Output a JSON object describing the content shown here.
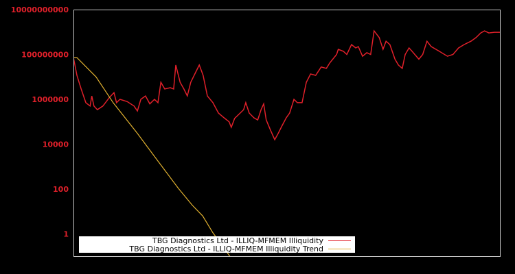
{
  "chart_data": {
    "type": "line",
    "title": "",
    "xlabel": "",
    "ylabel": "",
    "yscale": "log",
    "ylim": [
      0.1,
      10000000000
    ],
    "y_tick_labels": [
      "10000000000",
      "100000000",
      "1000000",
      "10000",
      "100",
      "1"
    ],
    "y_tick_values": [
      10000000000,
      100000000,
      1000000,
      10000,
      100,
      1
    ],
    "x_tick_labels": [],
    "grid": false,
    "legend_position": "bottom-left",
    "background": "#000000",
    "axis_color": "#cccccc",
    "tick_label_color": "#e0202a",
    "x_note": "x is relative position across the plot (0 = left edge, 1 = right edge); no x tick labels are shown",
    "series": [
      {
        "name": "TBG Diagnostics Ltd - ILLIQ-MFMEM Illiquidity",
        "color": "#e0202a",
        "points_x_rel_log10y": [
          [
            0.0,
            7.86
          ],
          [
            0.008,
            7.07
          ],
          [
            0.018,
            6.46
          ],
          [
            0.029,
            5.85
          ],
          [
            0.039,
            5.7
          ],
          [
            0.043,
            6.15
          ],
          [
            0.048,
            5.7
          ],
          [
            0.056,
            5.54
          ],
          [
            0.069,
            5.7
          ],
          [
            0.077,
            5.9
          ],
          [
            0.085,
            6.1
          ],
          [
            0.095,
            6.3
          ],
          [
            0.101,
            5.85
          ],
          [
            0.109,
            6.0
          ],
          [
            0.126,
            5.9
          ],
          [
            0.142,
            5.7
          ],
          [
            0.15,
            5.48
          ],
          [
            0.158,
            6.0
          ],
          [
            0.169,
            6.15
          ],
          [
            0.179,
            5.8
          ],
          [
            0.19,
            6.0
          ],
          [
            0.198,
            5.85
          ],
          [
            0.205,
            6.76
          ],
          [
            0.214,
            6.46
          ],
          [
            0.227,
            6.52
          ],
          [
            0.235,
            6.46
          ],
          [
            0.24,
            7.53
          ],
          [
            0.25,
            6.76
          ],
          [
            0.259,
            6.46
          ],
          [
            0.267,
            6.15
          ],
          [
            0.275,
            6.76
          ],
          [
            0.287,
            7.22
          ],
          [
            0.295,
            7.53
          ],
          [
            0.304,
            7.07
          ],
          [
            0.314,
            6.15
          ],
          [
            0.327,
            5.85
          ],
          [
            0.34,
            5.39
          ],
          [
            0.353,
            5.18
          ],
          [
            0.365,
            5.0
          ],
          [
            0.37,
            4.75
          ],
          [
            0.378,
            5.15
          ],
          [
            0.391,
            5.39
          ],
          [
            0.399,
            5.54
          ],
          [
            0.404,
            5.85
          ],
          [
            0.412,
            5.39
          ],
          [
            0.423,
            5.18
          ],
          [
            0.432,
            5.08
          ],
          [
            0.44,
            5.54
          ],
          [
            0.446,
            5.8
          ],
          [
            0.452,
            5.08
          ],
          [
            0.462,
            4.63
          ],
          [
            0.472,
            4.2
          ],
          [
            0.48,
            4.48
          ],
          [
            0.488,
            4.78
          ],
          [
            0.499,
            5.18
          ],
          [
            0.507,
            5.39
          ],
          [
            0.517,
            6.0
          ],
          [
            0.525,
            5.85
          ],
          [
            0.536,
            5.85
          ],
          [
            0.546,
            6.76
          ],
          [
            0.556,
            7.13
          ],
          [
            0.568,
            7.07
          ],
          [
            0.581,
            7.44
          ],
          [
            0.593,
            7.38
          ],
          [
            0.601,
            7.62
          ],
          [
            0.617,
            8.0
          ],
          [
            0.621,
            8.23
          ],
          [
            0.633,
            8.14
          ],
          [
            0.641,
            8.0
          ],
          [
            0.652,
            8.44
          ],
          [
            0.662,
            8.29
          ],
          [
            0.668,
            8.35
          ],
          [
            0.678,
            7.92
          ],
          [
            0.688,
            8.08
          ],
          [
            0.697,
            8.0
          ],
          [
            0.705,
            9.05
          ],
          [
            0.717,
            8.75
          ],
          [
            0.726,
            8.23
          ],
          [
            0.733,
            8.59
          ],
          [
            0.742,
            8.44
          ],
          [
            0.754,
            7.79
          ],
          [
            0.762,
            7.53
          ],
          [
            0.771,
            7.38
          ],
          [
            0.778,
            8.0
          ],
          [
            0.787,
            8.29
          ],
          [
            0.794,
            8.14
          ],
          [
            0.81,
            7.79
          ],
          [
            0.819,
            8.0
          ],
          [
            0.829,
            8.59
          ],
          [
            0.839,
            8.35
          ],
          [
            0.858,
            8.14
          ],
          [
            0.877,
            7.92
          ],
          [
            0.89,
            8.0
          ],
          [
            0.903,
            8.29
          ],
          [
            0.916,
            8.44
          ],
          [
            0.932,
            8.59
          ],
          [
            0.944,
            8.75
          ],
          [
            0.955,
            8.96
          ],
          [
            0.964,
            9.05
          ],
          [
            0.974,
            8.96
          ],
          [
            0.987,
            8.99
          ],
          [
            1.0,
            8.99
          ]
        ]
      },
      {
        "name": "TBG Diagnostics Ltd - ILLIQ-MFMEM Illiquidity Trend",
        "color": "#e0b030",
        "points_x_rel_log10y": [
          [
            0.0,
            7.86
          ],
          [
            0.008,
            7.86
          ],
          [
            0.053,
            7.0
          ],
          [
            0.093,
            5.85
          ],
          [
            0.15,
            4.48
          ],
          [
            0.198,
            3.25
          ],
          [
            0.246,
            2.03
          ],
          [
            0.279,
            1.27
          ],
          [
            0.303,
            0.8
          ],
          [
            0.327,
            0.05
          ],
          [
            0.367,
            -1.0
          ]
        ]
      }
    ]
  },
  "legend": {
    "items": [
      {
        "label": "TBG Diagnostics Ltd - ILLIQ-MFMEM Illiquidity",
        "color": "#e0202a"
      },
      {
        "label": "TBG Diagnostics Ltd - ILLIQ-MFMEM Illiquidity Trend",
        "color": "#e0b030"
      }
    ]
  }
}
